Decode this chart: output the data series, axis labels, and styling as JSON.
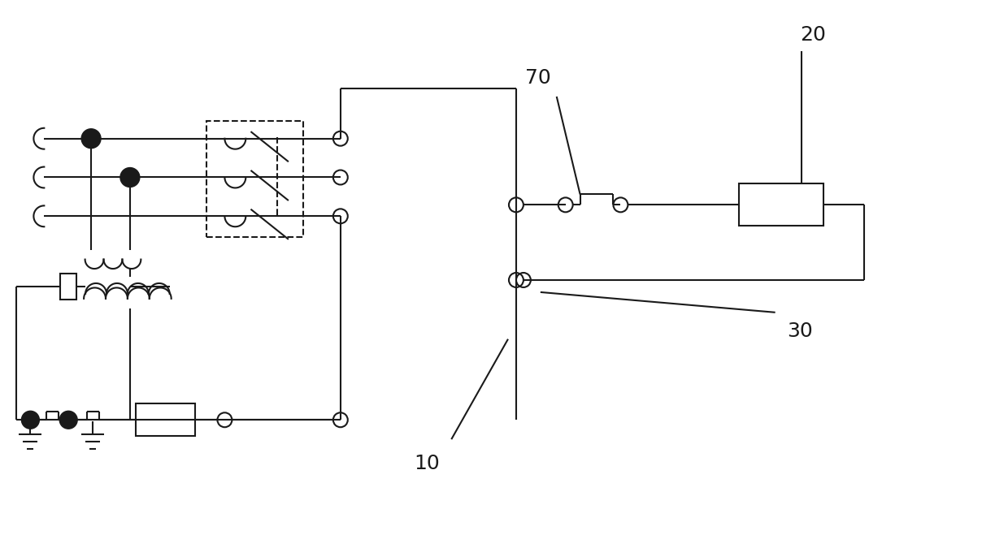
{
  "bg_color": "#ffffff",
  "line_color": "#1a1a1a",
  "line_width": 1.5,
  "fig_width": 12.4,
  "fig_height": 6.8,
  "lw": 1.5
}
